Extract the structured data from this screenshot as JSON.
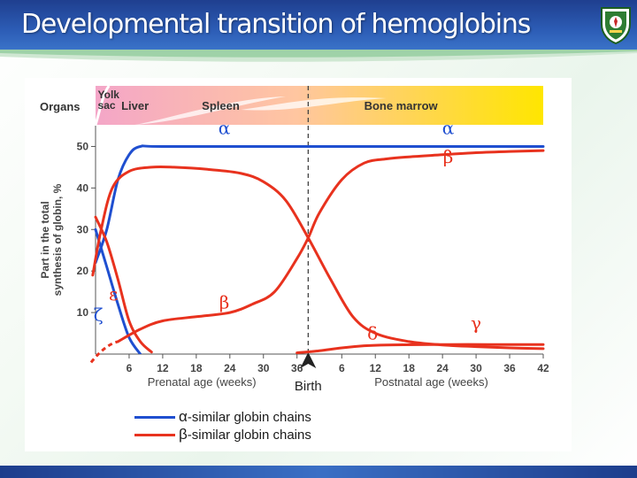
{
  "slide": {
    "title": "Developmental transition of hemoglobins",
    "logo_icon": "university-crest-icon"
  },
  "colors": {
    "alpha": "#1f4fd0",
    "beta": "#e8321e",
    "title_bar": "#2c5cb5",
    "organ_band_start": "#f4a6c8",
    "organ_band_end": "#ffe600"
  },
  "chart_data": {
    "type": "line",
    "organ_band": {
      "label": "Organs",
      "segments": [
        {
          "label": "Yolk\nsac",
          "from": 0,
          "to": 1.5
        },
        {
          "label": "Liver",
          "from": 1.5,
          "to": 18
        },
        {
          "label": "Spleen",
          "from": 18,
          "to": 44
        },
        {
          "label": "Bone marrow",
          "from": 44,
          "to": 80
        }
      ]
    },
    "ylabel": "Part in the total\nsynthesis of globin, %",
    "ylim": [
      0,
      55
    ],
    "yticks": [
      10,
      20,
      30,
      40,
      50
    ],
    "xlim": [
      0,
      80
    ],
    "birth_x": 38,
    "birth_label": "Birth",
    "x_ticks": [
      {
        "x": 6,
        "label": "6"
      },
      {
        "x": 12,
        "label": "12"
      },
      {
        "x": 18,
        "label": "18"
      },
      {
        "x": 24,
        "label": "24"
      },
      {
        "x": 30,
        "label": "30"
      },
      {
        "x": 36,
        "label": "36"
      },
      {
        "x": 44,
        "label": "6"
      },
      {
        "x": 50,
        "label": "12"
      },
      {
        "x": 56,
        "label": "18"
      },
      {
        "x": 62,
        "label": "24"
      },
      {
        "x": 68,
        "label": "30"
      },
      {
        "x": 74,
        "label": "36"
      },
      {
        "x": 80,
        "label": "42"
      }
    ],
    "xlabel_prenatal": "Prenatal age (weeks)",
    "xlabel_postnatal": "Postnatal age (weeks)",
    "series": [
      {
        "name": "α",
        "family": "alpha",
        "label_pos": [
          23,
          53
        ],
        "x": [
          0,
          2,
          4,
          6,
          8,
          12,
          38,
          80
        ],
        "y": [
          22,
          30,
          42,
          48,
          50,
          50,
          50,
          50
        ]
      },
      {
        "name": "ζ",
        "family": "alpha",
        "label_pos": [
          0.5,
          8
        ],
        "x": [
          0,
          2,
          4,
          6,
          8
        ],
        "y": [
          30,
          21,
          12,
          4,
          0
        ]
      },
      {
        "name": "ε",
        "family": "beta",
        "label_pos": [
          3.2,
          13
        ],
        "x": [
          0,
          2,
          4,
          6,
          8,
          10
        ],
        "y": [
          33,
          27,
          18,
          8,
          3,
          0.5
        ]
      },
      {
        "name": "γ",
        "family": "beta",
        "label_pos": [
          68,
          6
        ],
        "x": [
          -0.5,
          1,
          3,
          6,
          10,
          14,
          20,
          26,
          30,
          34,
          38,
          42,
          46,
          50,
          56,
          62,
          68,
          74,
          80
        ],
        "y": [
          19,
          30,
          40,
          44,
          45,
          45,
          44.5,
          43.5,
          41.5,
          37,
          28,
          18,
          9,
          5,
          3,
          2.2,
          1.8,
          1.5,
          1.3
        ]
      },
      {
        "name": "β",
        "family": "beta",
        "label_pos": [
          23,
          11
        ],
        "x": [
          4,
          8,
          12,
          18,
          24,
          28,
          32,
          36,
          38,
          40,
          44,
          48,
          52,
          56,
          62,
          68,
          74,
          80
        ],
        "y": [
          3,
          6,
          8,
          9,
          10,
          12,
          15,
          23,
          28,
          34,
          42,
          46,
          47,
          47.5,
          48,
          48.5,
          48.8,
          49
        ]
      },
      {
        "name": "β",
        "family": "beta",
        "label_pos": [
          63,
          46
        ],
        "x": [],
        "y": []
      },
      {
        "name": "δ",
        "family": "beta",
        "label_pos": [
          49.5,
          3.5
        ],
        "x": [
          36,
          40,
          44,
          48,
          52,
          60,
          70,
          80
        ],
        "y": [
          0.3,
          0.8,
          1.5,
          2,
          2.2,
          2.3,
          2.3,
          2.3
        ]
      },
      {
        "name": "α",
        "family": "alpha",
        "label_pos": [
          63,
          53
        ],
        "x": [],
        "y": []
      }
    ],
    "legend": [
      {
        "symbol": "α",
        "text": "-similar globin chains",
        "family": "alpha"
      },
      {
        "symbol": "β",
        "text": "-similar globin chains",
        "family": "beta"
      }
    ]
  }
}
